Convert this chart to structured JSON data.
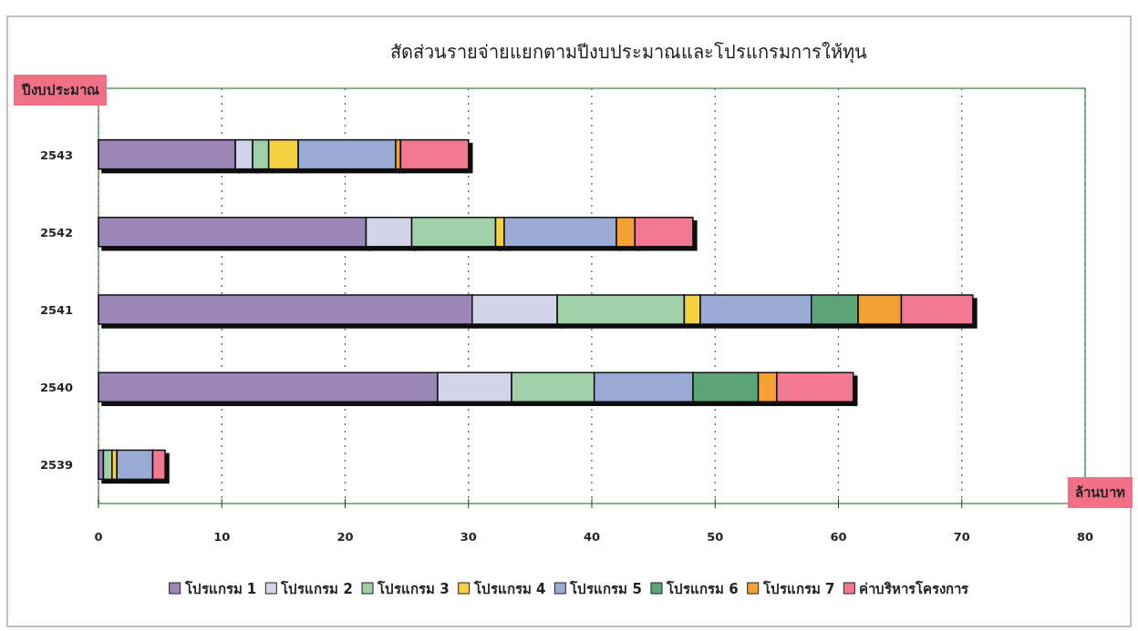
{
  "chart_data": {
    "type": "bar",
    "orientation": "horizontal",
    "stacked": true,
    "title": "สัดส่วนรายจ่ายแยกตามปีงบประมาณและโปรแกรมการให้ทุน",
    "xlabel": "ล้านบาท",
    "ylabel": "ปีงบประมาณ",
    "categories": [
      "2543",
      "2542",
      "2541",
      "2540",
      "2539"
    ],
    "series": [
      {
        "name": "โปรแกรม 1",
        "color": "#9b86b8",
        "values": [
          11.1,
          21.7,
          30.3,
          27.5,
          0.4
        ]
      },
      {
        "name": "โปรแกรม 2",
        "color": "#d3d3ea",
        "values": [
          1.4,
          3.7,
          6.9,
          6.0,
          0
        ]
      },
      {
        "name": "โปรแกรม 3",
        "color": "#9fd0a8",
        "values": [
          1.3,
          6.8,
          10.3,
          6.7,
          0.7
        ]
      },
      {
        "name": "โปรแกรม 4",
        "color": "#f5d040",
        "values": [
          2.4,
          0.7,
          1.3,
          0,
          0.4
        ]
      },
      {
        "name": "โปรแกรม 5",
        "color": "#9aaad6",
        "values": [
          7.9,
          9.1,
          9.0,
          8.0,
          2.9
        ]
      },
      {
        "name": "โปรแกรม 6",
        "color": "#5aa478",
        "values": [
          0,
          0,
          3.8,
          5.3,
          0
        ]
      },
      {
        "name": "โปรแกรม 7",
        "color": "#f5a030",
        "values": [
          0.4,
          1.5,
          3.5,
          1.5,
          0
        ]
      },
      {
        "name": "ค่าบริหารโครงการ",
        "color": "#f07890",
        "values": [
          5.5,
          4.7,
          5.8,
          6.2,
          1.0
        ]
      }
    ],
    "xlim": [
      0,
      80
    ],
    "xticks": [
      0,
      10,
      20,
      30,
      40,
      50,
      60,
      70,
      80
    ],
    "grid": "x",
    "legend": "bottom"
  }
}
